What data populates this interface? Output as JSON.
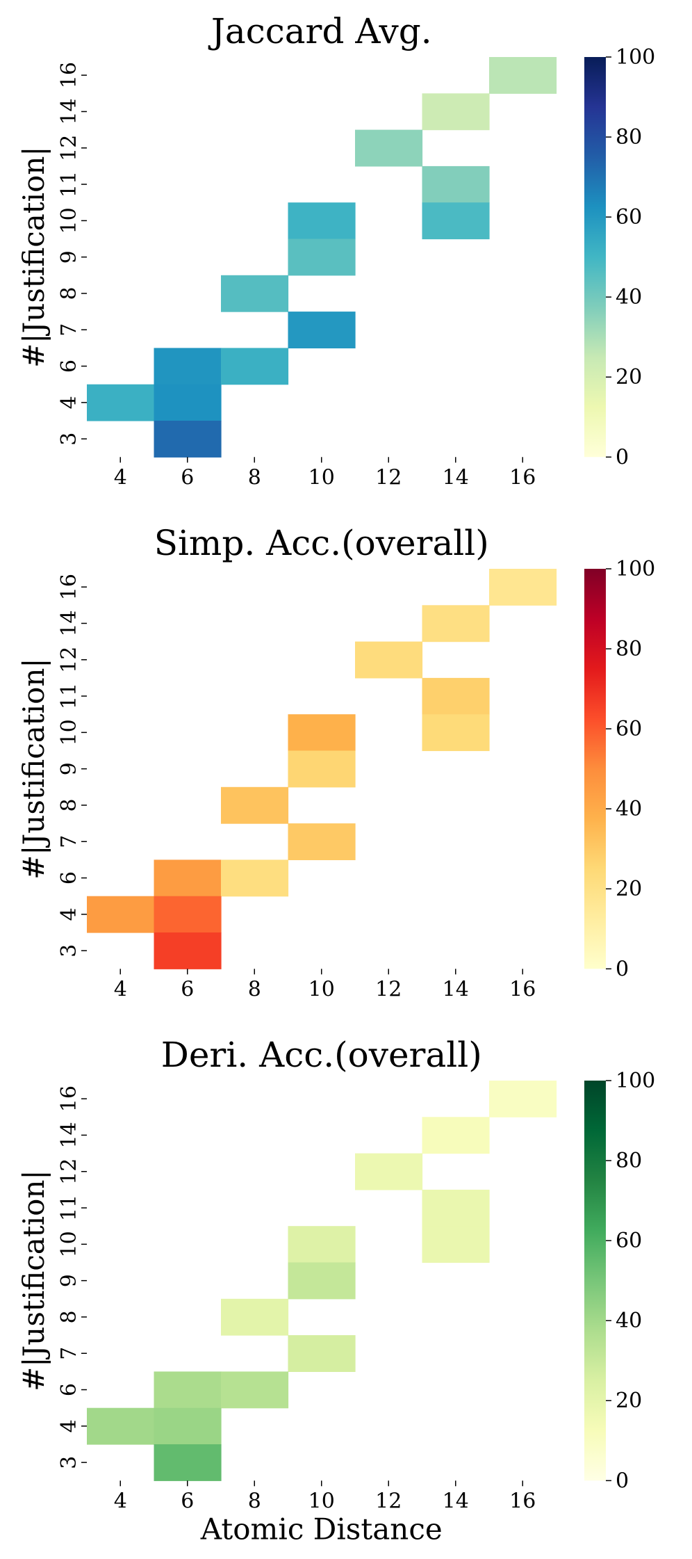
{
  "chart_data": [
    {
      "type": "heatmap",
      "title": "Jaccard Avg.",
      "ylabel": "#|Justification|",
      "xlabel": "",
      "x_categories": [
        "4",
        "6",
        "8",
        "10",
        "12",
        "14",
        "16"
      ],
      "y_categories": [
        "3",
        "4",
        "6",
        "7",
        "8",
        "9",
        "10",
        "11",
        "12",
        "14",
        "16"
      ],
      "colormap": "YlGnBu",
      "colorbar": {
        "min": 0,
        "max": 100,
        "ticks": [
          "0",
          "20",
          "40",
          "60",
          "80",
          "100"
        ]
      },
      "cells": [
        {
          "x": "16",
          "y": "16",
          "value": 27
        },
        {
          "x": "14",
          "y": "14",
          "value": 23
        },
        {
          "x": "12",
          "y": "12",
          "value": 35
        },
        {
          "x": "14",
          "y": "11",
          "value": 37
        },
        {
          "x": "10",
          "y": "10",
          "value": 51
        },
        {
          "x": "14",
          "y": "10",
          "value": 48
        },
        {
          "x": "10",
          "y": "9",
          "value": 45
        },
        {
          "x": "8",
          "y": "8",
          "value": 46
        },
        {
          "x": "10",
          "y": "7",
          "value": 60
        },
        {
          "x": "6",
          "y": "6",
          "value": 61
        },
        {
          "x": "8",
          "y": "6",
          "value": 52
        },
        {
          "x": "4",
          "y": "4",
          "value": 52
        },
        {
          "x": "6",
          "y": "4",
          "value": 62
        },
        {
          "x": "6",
          "y": "3",
          "value": 72
        }
      ]
    },
    {
      "type": "heatmap",
      "title": "Simp. Acc.(overall)",
      "ylabel": "#|Justification|",
      "xlabel": "",
      "x_categories": [
        "4",
        "6",
        "8",
        "10",
        "12",
        "14",
        "16"
      ],
      "y_categories": [
        "3",
        "4",
        "6",
        "7",
        "8",
        "9",
        "10",
        "11",
        "12",
        "14",
        "16"
      ],
      "colormap": "YlOrRd",
      "colorbar": {
        "min": 0,
        "max": 100,
        "ticks": [
          "0",
          "20",
          "40",
          "60",
          "80",
          "100"
        ]
      },
      "cells": [
        {
          "x": "16",
          "y": "16",
          "value": 17
        },
        {
          "x": "14",
          "y": "14",
          "value": 21
        },
        {
          "x": "12",
          "y": "12",
          "value": 23
        },
        {
          "x": "14",
          "y": "11",
          "value": 28
        },
        {
          "x": "10",
          "y": "10",
          "value": 38
        },
        {
          "x": "14",
          "y": "10",
          "value": 24
        },
        {
          "x": "10",
          "y": "9",
          "value": 26
        },
        {
          "x": "8",
          "y": "8",
          "value": 32
        },
        {
          "x": "10",
          "y": "7",
          "value": 30
        },
        {
          "x": "6",
          "y": "6",
          "value": 45
        },
        {
          "x": "8",
          "y": "6",
          "value": 22
        },
        {
          "x": "4",
          "y": "4",
          "value": 45
        },
        {
          "x": "6",
          "y": "4",
          "value": 58
        },
        {
          "x": "6",
          "y": "3",
          "value": 66
        }
      ]
    },
    {
      "type": "heatmap",
      "title": "Deri. Acc.(overall)",
      "ylabel": "#|Justification|",
      "xlabel": "Atomic Distance",
      "x_categories": [
        "4",
        "6",
        "8",
        "10",
        "12",
        "14",
        "16"
      ],
      "y_categories": [
        "3",
        "4",
        "6",
        "7",
        "8",
        "9",
        "10",
        "11",
        "12",
        "14",
        "16"
      ],
      "colormap": "YlGn",
      "colorbar": {
        "min": 0,
        "max": 100,
        "ticks": [
          "0",
          "20",
          "40",
          "60",
          "80",
          "100"
        ]
      },
      "cells": [
        {
          "x": "16",
          "y": "16",
          "value": 10
        },
        {
          "x": "14",
          "y": "14",
          "value": 12
        },
        {
          "x": "12",
          "y": "12",
          "value": 17
        },
        {
          "x": "14",
          "y": "11",
          "value": 18
        },
        {
          "x": "10",
          "y": "10",
          "value": 23
        },
        {
          "x": "14",
          "y": "10",
          "value": 18
        },
        {
          "x": "10",
          "y": "9",
          "value": 31
        },
        {
          "x": "8",
          "y": "8",
          "value": 21
        },
        {
          "x": "10",
          "y": "7",
          "value": 26
        },
        {
          "x": "6",
          "y": "6",
          "value": 38
        },
        {
          "x": "8",
          "y": "6",
          "value": 35
        },
        {
          "x": "4",
          "y": "4",
          "value": 40
        },
        {
          "x": "6",
          "y": "4",
          "value": 42
        },
        {
          "x": "6",
          "y": "3",
          "value": 55
        }
      ]
    }
  ]
}
